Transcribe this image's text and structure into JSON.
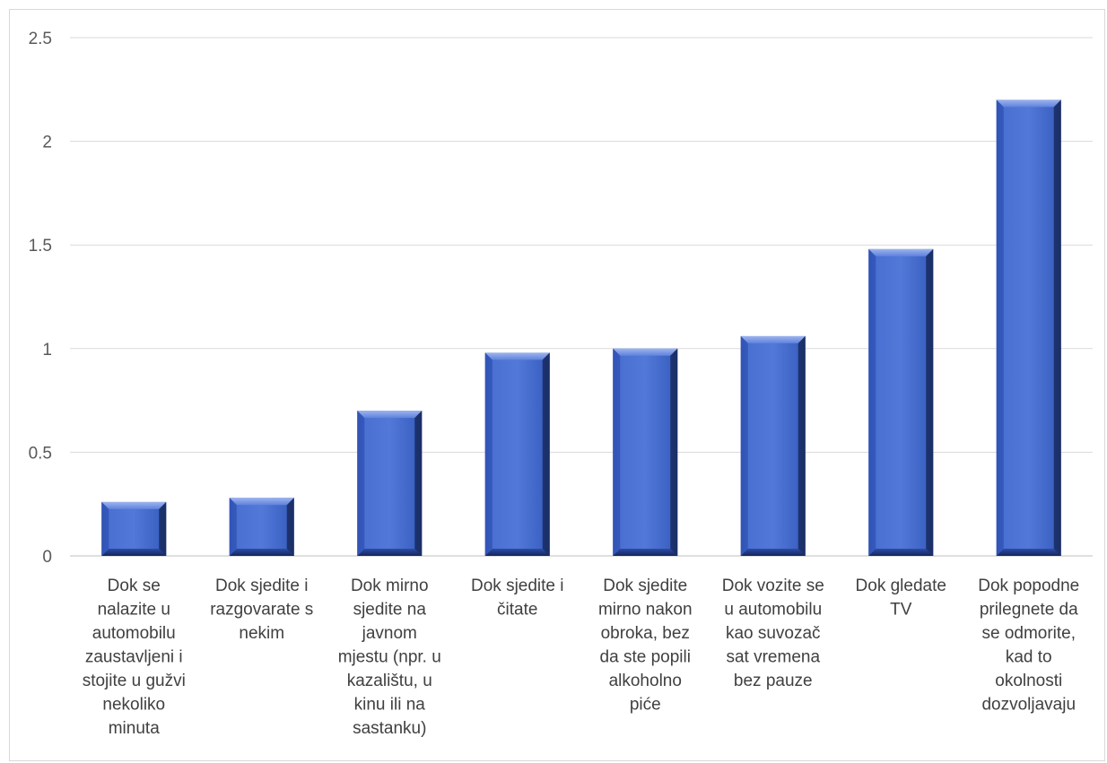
{
  "chart_data": {
    "type": "bar",
    "title": "",
    "xlabel": "",
    "ylabel": "",
    "ylim": [
      0,
      2.5
    ],
    "yticks": [
      0,
      0.5,
      1,
      1.5,
      2,
      2.5
    ],
    "ytick_labels": [
      "0",
      "0.5",
      "1",
      "1.5",
      "2",
      "2.5"
    ],
    "grid": true,
    "legend": "none",
    "categories": [
      [
        "Dok se",
        "nalazite u",
        "automobilu",
        "zaustavljeni i",
        "stojite u gužvi",
        "nekoliko",
        "minuta"
      ],
      [
        "Dok sjedite i",
        "razgovarate s",
        "nekim"
      ],
      [
        "Dok mirno",
        "sjedite na",
        "javnom",
        "mjestu (npr. u",
        "kazalištu, u",
        "kinu ili na",
        "sastanku)"
      ],
      [
        "Dok sjedite i",
        "čitate"
      ],
      [
        "Dok sjedite",
        "mirno nakon",
        "obroka, bez",
        "da ste popili",
        "alkoholno",
        "piće"
      ],
      [
        "Dok vozite se",
        "u automobilu",
        "kao suvozač",
        "sat vremena",
        "bez pauze"
      ],
      [
        "Dok gledate",
        "TV"
      ],
      [
        "Dok popodne",
        "prilegnete da",
        "se odmorite,",
        "kad to",
        "okolnosti",
        "dozvoljavaju"
      ]
    ],
    "values": [
      0.26,
      0.28,
      0.7,
      0.98,
      1.0,
      1.06,
      1.48,
      2.2
    ],
    "colors": {
      "bar_fill_top": "#6f8fe0",
      "bar_fill_mid": "#3f66c8",
      "bar_fill_bottom": "#2a4fae",
      "bar_edge_dark": "#1b2f66",
      "grid": "#d9d9d9",
      "axis": "#bfbfbf"
    }
  }
}
